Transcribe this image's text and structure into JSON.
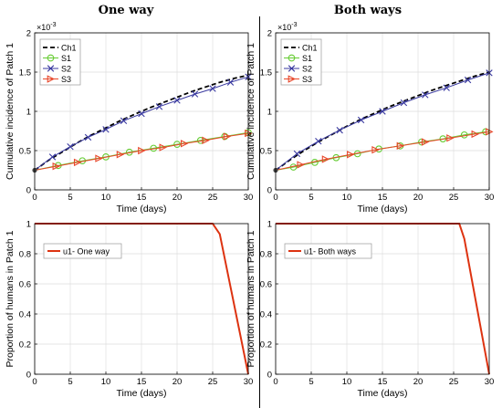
{
  "titles": {
    "left": "One way",
    "right": "Both ways"
  },
  "colors": {
    "ch1": "#000000",
    "s1": "#66cc33",
    "s2": "#3a3aa0",
    "s3": "#e8472a",
    "control": "#dd3311"
  },
  "chart_data": [
    {
      "id": "top-left",
      "type": "line",
      "xlabel": "Time (days)",
      "ylabel": "Cumulative incidence of Patch 1",
      "exponent_label": "×10",
      "exponent_power": "-3",
      "xlim": [
        0,
        30
      ],
      "ylim": [
        0,
        2
      ],
      "xticks": [
        "0",
        "5",
        "10",
        "15",
        "20",
        "25",
        "30"
      ],
      "yticks": [
        "0",
        "0.5",
        "1",
        "1.5",
        "2"
      ],
      "legend_position": "top-left",
      "series": [
        {
          "name": "Ch1",
          "marker": "none",
          "x": [
            0,
            2,
            4,
            6,
            8,
            10,
            12,
            14,
            16,
            18,
            20,
            22,
            24,
            26,
            28,
            30
          ],
          "y": [
            0.25,
            0.38,
            0.49,
            0.6,
            0.7,
            0.79,
            0.88,
            0.96,
            1.04,
            1.11,
            1.18,
            1.25,
            1.31,
            1.37,
            1.42,
            1.46
          ]
        },
        {
          "name": "S1",
          "marker": "circle",
          "x": [
            0,
            3.3,
            6.7,
            10,
            13.3,
            16.7,
            20,
            23.3,
            26.7,
            30
          ],
          "y": [
            0.25,
            0.31,
            0.37,
            0.42,
            0.48,
            0.53,
            0.58,
            0.63,
            0.68,
            0.73
          ]
        },
        {
          "name": "S2",
          "marker": "x",
          "x": [
            0,
            2.5,
            5,
            7.5,
            10,
            12.5,
            15,
            17.5,
            20,
            22.5,
            25,
            27.5,
            30
          ],
          "y": [
            0.25,
            0.42,
            0.55,
            0.67,
            0.77,
            0.88,
            0.97,
            1.06,
            1.14,
            1.22,
            1.29,
            1.37,
            1.44
          ]
        },
        {
          "name": "S3",
          "marker": "triangle-right",
          "x": [
            0,
            3,
            6,
            9,
            12,
            15,
            18,
            21,
            24,
            27,
            30
          ],
          "y": [
            0.25,
            0.3,
            0.35,
            0.4,
            0.45,
            0.5,
            0.54,
            0.59,
            0.63,
            0.68,
            0.72
          ]
        }
      ]
    },
    {
      "id": "top-right",
      "type": "line",
      "xlabel": "Time (days)",
      "ylabel": "Cumulative incidence of Patch 1",
      "exponent_label": "×10",
      "exponent_power": "-3",
      "xlim": [
        0,
        30
      ],
      "ylim": [
        0,
        2
      ],
      "xticks": [
        "0",
        "5",
        "10",
        "15",
        "20",
        "25",
        "30"
      ],
      "yticks": [
        "0",
        "0.5",
        "1",
        "1.5",
        "2"
      ],
      "legend_position": "top-left",
      "series": [
        {
          "name": "Ch1",
          "marker": "none",
          "x": [
            0,
            2,
            4,
            6,
            8,
            10,
            12,
            14,
            16,
            18,
            20,
            22,
            24,
            26,
            28,
            30
          ],
          "y": [
            0.25,
            0.38,
            0.5,
            0.61,
            0.71,
            0.81,
            0.9,
            0.98,
            1.06,
            1.13,
            1.2,
            1.27,
            1.33,
            1.39,
            1.45,
            1.5
          ]
        },
        {
          "name": "S1",
          "marker": "circle",
          "x": [
            0,
            2.5,
            5.5,
            8.5,
            11.5,
            14.5,
            17.5,
            20.5,
            23.5,
            26.5,
            29.5
          ],
          "y": [
            0.25,
            0.29,
            0.35,
            0.41,
            0.46,
            0.52,
            0.56,
            0.61,
            0.65,
            0.7,
            0.74
          ]
        },
        {
          "name": "S2",
          "marker": "x",
          "x": [
            0,
            3,
            6,
            9,
            12,
            15,
            18,
            21,
            24,
            27,
            30
          ],
          "y": [
            0.25,
            0.46,
            0.62,
            0.76,
            0.89,
            1.0,
            1.11,
            1.21,
            1.3,
            1.4,
            1.49
          ]
        },
        {
          "name": "S3",
          "marker": "triangle-right",
          "x": [
            0,
            3.5,
            7,
            10.5,
            14,
            17.5,
            21,
            24.5,
            28,
            30
          ],
          "y": [
            0.25,
            0.32,
            0.39,
            0.45,
            0.51,
            0.56,
            0.61,
            0.66,
            0.71,
            0.74
          ]
        }
      ]
    },
    {
      "id": "bottom-left",
      "type": "line",
      "xlabel": "Time (days)",
      "ylabel": "Proportion of humans in Patch 1",
      "xlim": [
        0,
        30
      ],
      "ylim": [
        0,
        1
      ],
      "xticks": [
        "0",
        "5",
        "10",
        "15",
        "20",
        "25",
        "30"
      ],
      "yticks": [
        "0",
        "0.2",
        "0.4",
        "0.6",
        "0.8",
        "1"
      ],
      "legend_position": "top-left",
      "series": [
        {
          "name": "u1- One way",
          "marker": "none",
          "x": [
            0,
            25,
            26,
            30
          ],
          "y": [
            1,
            1,
            0.93,
            0
          ]
        }
      ]
    },
    {
      "id": "bottom-right",
      "type": "line",
      "xlabel": "Time (days)",
      "ylabel": "Proportion of humans in Patch 1",
      "xlim": [
        0,
        30
      ],
      "ylim": [
        0,
        1
      ],
      "xticks": [
        "0",
        "5",
        "10",
        "15",
        "20",
        "25",
        "30"
      ],
      "yticks": [
        "0",
        "0.2",
        "0.4",
        "0.6",
        "0.8",
        "1"
      ],
      "legend_position": "top-left",
      "series": [
        {
          "name": "u1- Both ways",
          "marker": "none",
          "x": [
            0,
            25.8,
            26.5,
            30
          ],
          "y": [
            1,
            1,
            0.9,
            0
          ]
        }
      ]
    }
  ]
}
